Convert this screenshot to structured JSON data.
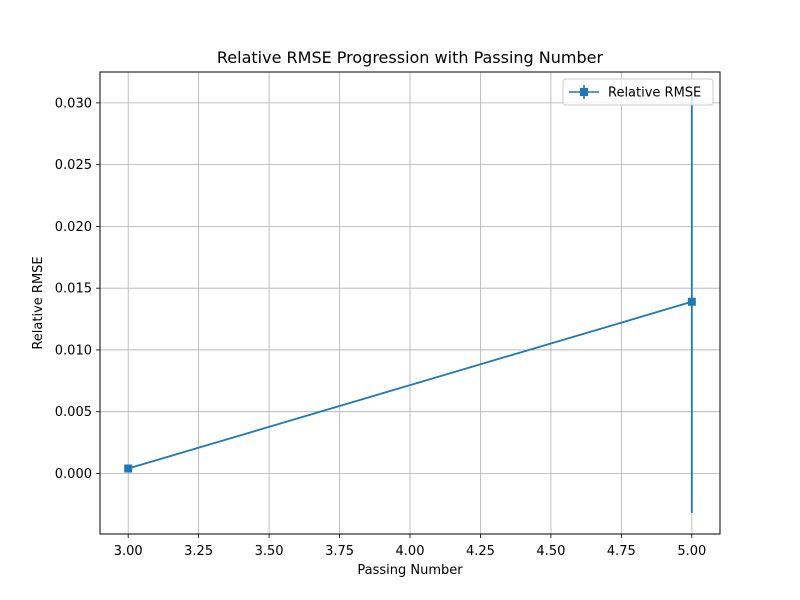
{
  "chart_data": {
    "type": "line",
    "title": "Relative RMSE Progression with Passing Number",
    "xlabel": "Passing Number",
    "ylabel": "Relative RMSE",
    "xlim": [
      2.9,
      5.1
    ],
    "ylim": [
      -0.0049,
      0.0325
    ],
    "xticks": [
      3.0,
      3.25,
      3.5,
      3.75,
      4.0,
      4.25,
      4.5,
      4.75,
      5.0
    ],
    "xtick_labels": [
      "3.00",
      "3.25",
      "3.50",
      "3.75",
      "4.00",
      "4.25",
      "4.50",
      "4.75",
      "5.00"
    ],
    "yticks": [
      0.0,
      0.005,
      0.01,
      0.015,
      0.02,
      0.025,
      0.03
    ],
    "ytick_labels": [
      "0.000",
      "0.005",
      "0.010",
      "0.015",
      "0.020",
      "0.025",
      "0.030"
    ],
    "grid": true,
    "legend_position": "top-right",
    "series": [
      {
        "name": "Relative RMSE",
        "color": "#1f77b4",
        "marker": "square",
        "x": [
          3.0,
          5.0
        ],
        "y": [
          0.0004,
          0.0139
        ],
        "yerr": [
          0.0,
          0.0171
        ]
      }
    ]
  }
}
